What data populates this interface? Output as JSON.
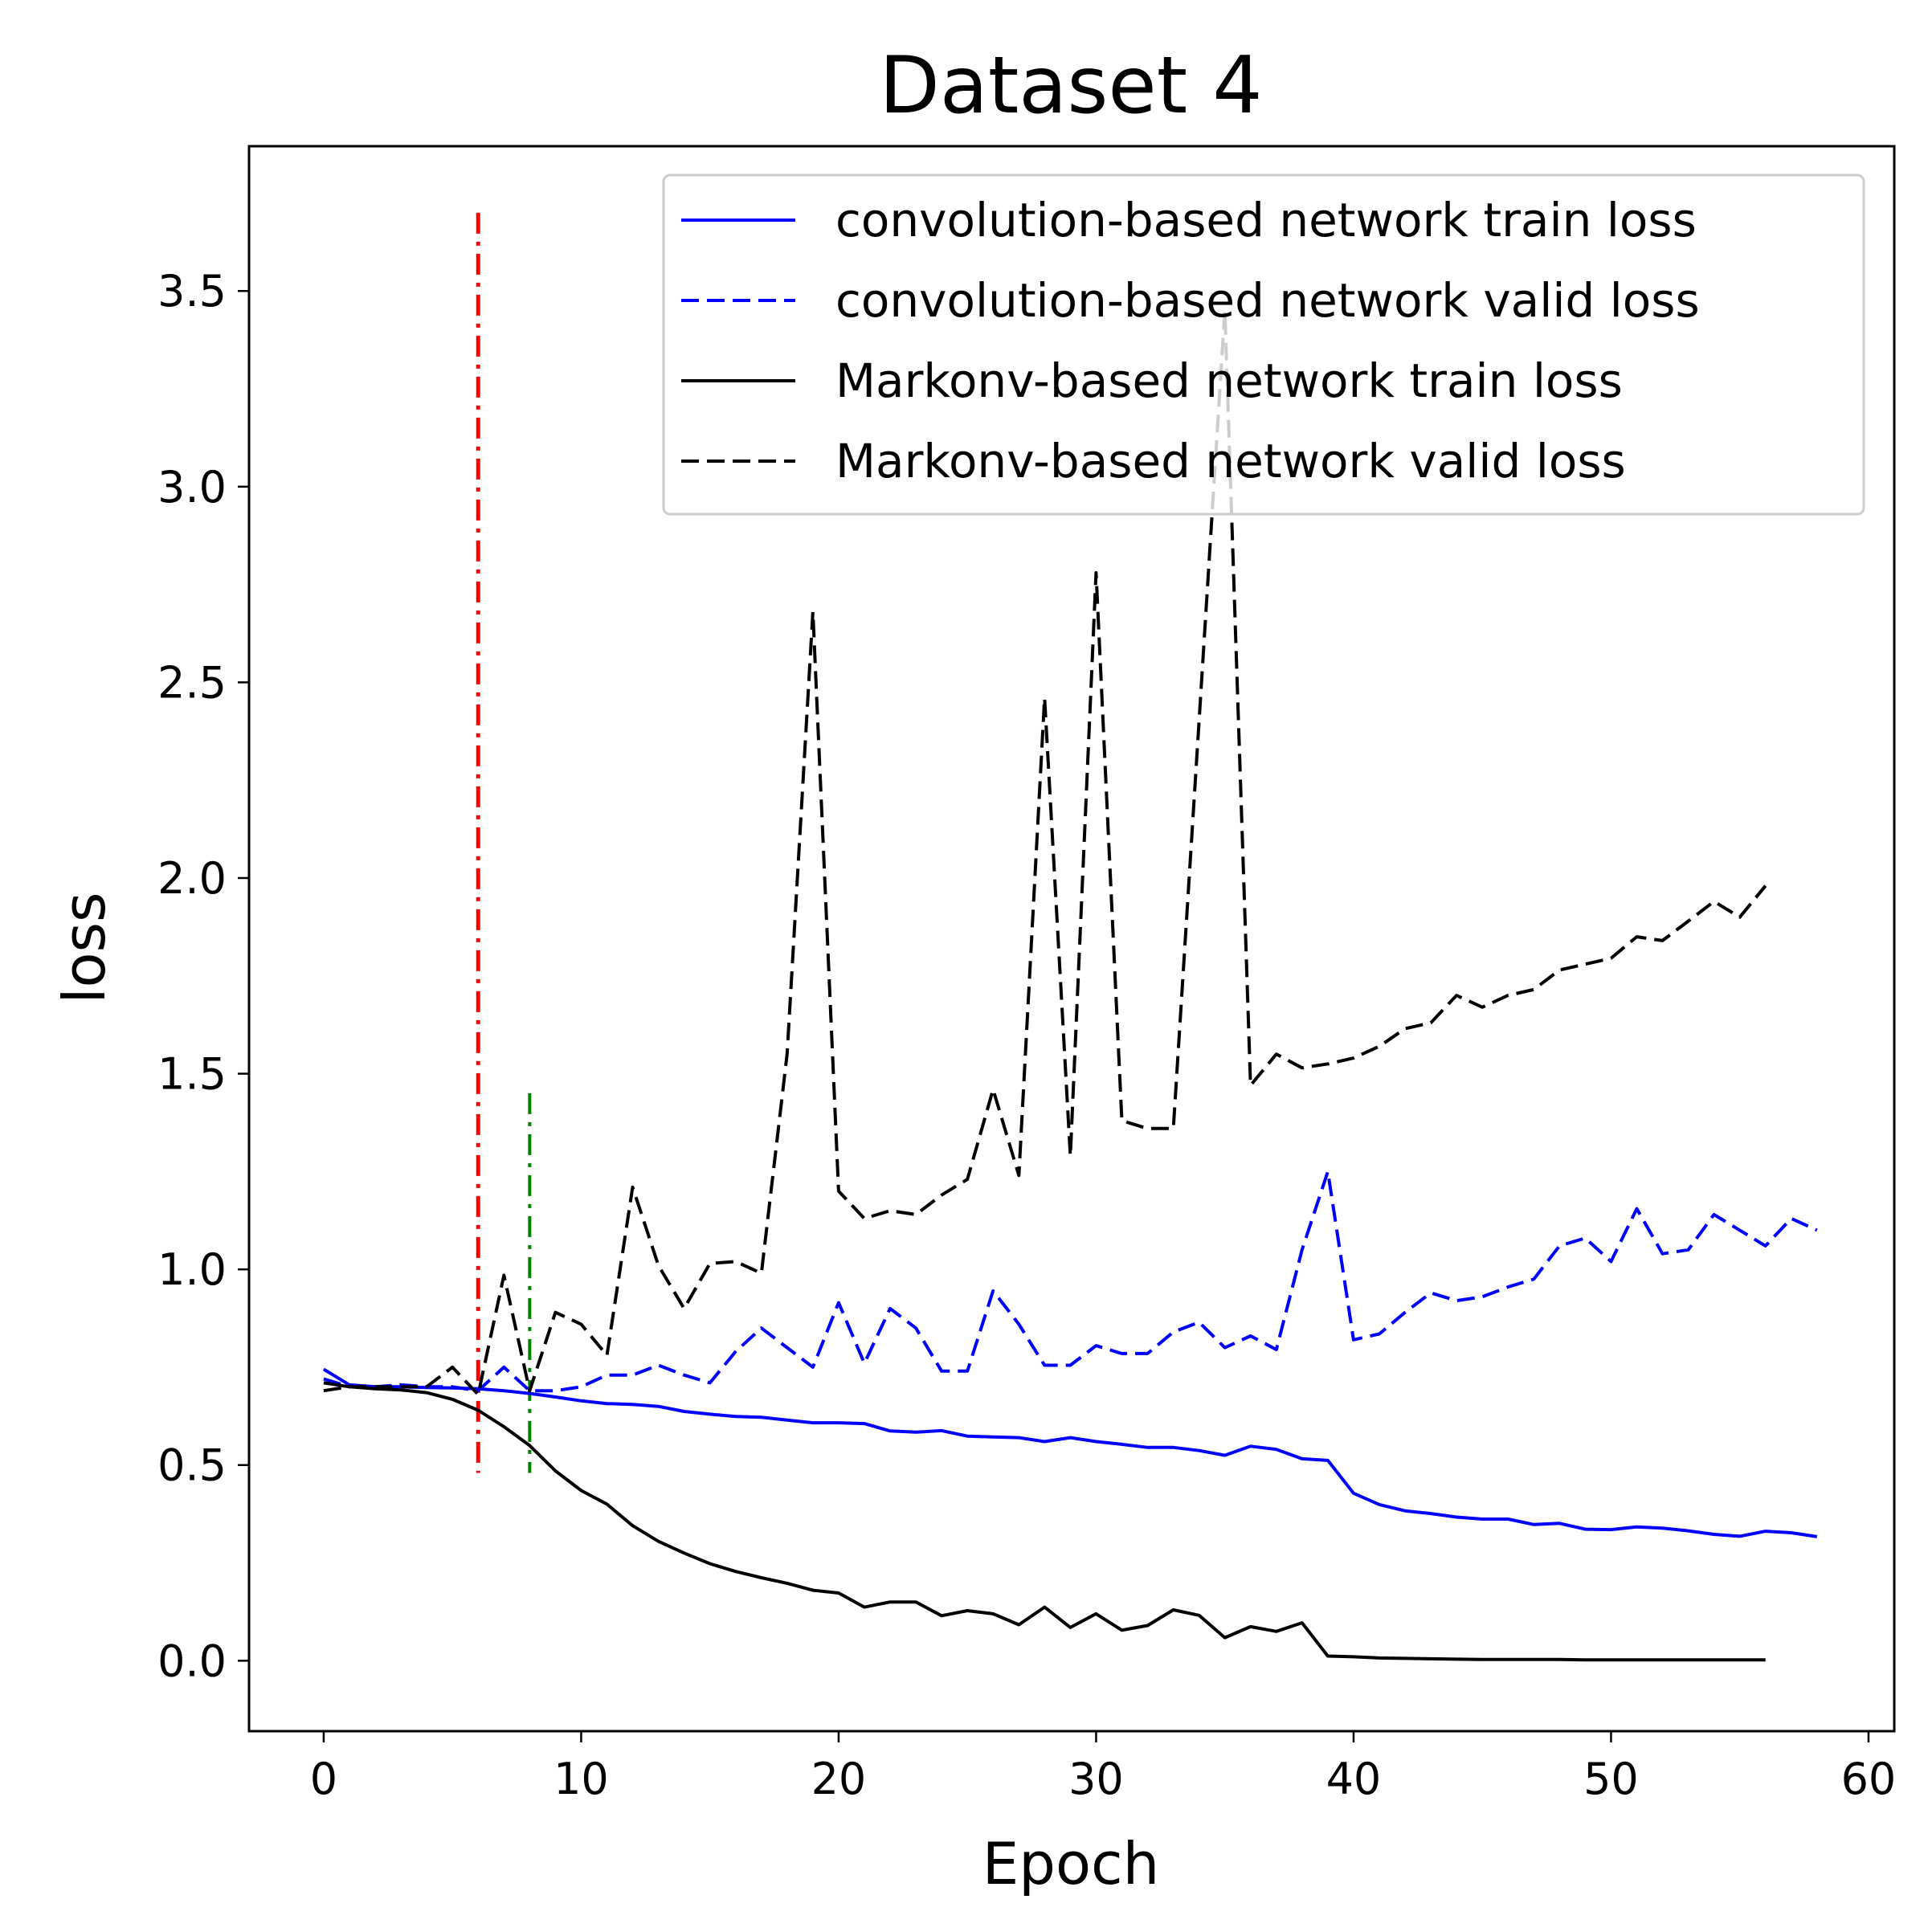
{
  "chart_data": {
    "type": "line",
    "title": "Dataset 4",
    "xlabel": "Epoch",
    "ylabel": "loss",
    "xlim": [
      -2.9,
      61.0
    ],
    "ylim": [
      -0.18,
      3.87
    ],
    "xticks": [
      0,
      10,
      20,
      30,
      40,
      50,
      60
    ],
    "yticks": [
      0.0,
      0.5,
      1.0,
      1.5,
      2.0,
      2.5,
      3.0,
      3.5
    ],
    "xtick_labels": [
      "0",
      "10",
      "20",
      "30",
      "40",
      "50",
      "60"
    ],
    "ytick_labels": [
      "0.0",
      "0.5",
      "1.0",
      "1.5",
      "2.0",
      "2.5",
      "3.0",
      "3.5"
    ],
    "grid": false,
    "legend_position": "upper-right",
    "series": [
      {
        "name": "convolution-based network train loss",
        "color": "#0000ff",
        "style": "solid",
        "x_start": 0,
        "values": [
          0.745,
          0.705,
          0.7,
          0.7,
          0.698,
          0.697,
          0.695,
          0.69,
          0.683,
          0.674,
          0.664,
          0.657,
          0.655,
          0.65,
          0.637,
          0.63,
          0.624,
          0.622,
          0.615,
          0.608,
          0.608,
          0.606,
          0.587,
          0.584,
          0.588,
          0.574,
          0.572,
          0.57,
          0.56,
          0.57,
          0.56,
          0.553,
          0.545,
          0.545,
          0.537,
          0.525,
          0.548,
          0.54,
          0.516,
          0.512,
          0.428,
          0.399,
          0.383,
          0.376,
          0.367,
          0.362,
          0.362,
          0.348,
          0.351,
          0.336,
          0.335,
          0.342,
          0.339,
          0.332,
          0.323,
          0.318,
          0.331,
          0.327,
          0.317
        ]
      },
      {
        "name": "convolution-based network valid loss",
        "color": "#0000ff",
        "style": "dashed",
        "x_start": 0,
        "values": [
          0.72,
          0.7,
          0.7,
          0.705,
          0.7,
          0.7,
          0.69,
          0.75,
          0.69,
          0.69,
          0.7,
          0.73,
          0.73,
          0.755,
          0.73,
          0.71,
          0.79,
          0.85,
          0.8,
          0.75,
          0.915,
          0.76,
          0.9,
          0.85,
          0.74,
          0.74,
          0.945,
          0.86,
          0.755,
          0.755,
          0.805,
          0.785,
          0.785,
          0.84,
          0.865,
          0.8,
          0.83,
          0.795,
          1.05,
          1.25,
          0.82,
          0.835,
          0.89,
          0.94,
          0.92,
          0.93,
          0.955,
          0.975,
          1.06,
          1.08,
          1.02,
          1.155,
          1.04,
          1.05,
          1.14,
          1.1,
          1.06,
          1.13,
          1.1
        ]
      },
      {
        "name": "Markonv-based network train loss",
        "color": "#000000",
        "style": "solid",
        "x_start": 0,
        "values": [
          0.71,
          0.7,
          0.695,
          0.692,
          0.685,
          0.668,
          0.64,
          0.598,
          0.55,
          0.485,
          0.435,
          0.4,
          0.345,
          0.305,
          0.275,
          0.248,
          0.228,
          0.212,
          0.198,
          0.18,
          0.173,
          0.137,
          0.15,
          0.15,
          0.115,
          0.128,
          0.12,
          0.092,
          0.137,
          0.085,
          0.12,
          0.078,
          0.09,
          0.13,
          0.116,
          0.059,
          0.087,
          0.075,
          0.097,
          0.012,
          0.01,
          0.007,
          0.006,
          0.005,
          0.004,
          0.003,
          0.003,
          0.003,
          0.003,
          0.002,
          0.002,
          0.002,
          0.002,
          0.002,
          0.002,
          0.002,
          0.002
        ]
      },
      {
        "name": "Markonv-based network valid loss",
        "color": "#000000",
        "style": "dashed",
        "x_start": 0,
        "values": [
          0.69,
          0.7,
          0.7,
          0.7,
          0.7,
          0.75,
          0.68,
          0.985,
          0.69,
          0.89,
          0.86,
          0.78,
          1.21,
          1.01,
          0.9,
          1.015,
          1.02,
          0.99,
          1.55,
          2.68,
          1.2,
          1.13,
          1.15,
          1.14,
          1.19,
          1.23,
          1.46,
          1.24,
          2.46,
          1.29,
          2.78,
          1.38,
          1.36,
          1.36,
          2.4,
          3.45,
          1.47,
          1.55,
          1.515,
          1.525,
          1.54,
          1.57,
          1.615,
          1.63,
          1.7,
          1.67,
          1.7,
          1.715,
          1.765,
          1.78,
          1.795,
          1.85,
          1.84,
          1.89,
          1.94,
          1.9,
          1.98
        ]
      }
    ],
    "vertical_markers": [
      {
        "x": 6,
        "y_range": [
          0.48,
          3.7
        ],
        "color": "#ff0000",
        "style": "dashdot"
      },
      {
        "x": 8,
        "y_range": [
          0.48,
          1.45
        ],
        "color": "#008000",
        "style": "dashdot"
      }
    ]
  }
}
